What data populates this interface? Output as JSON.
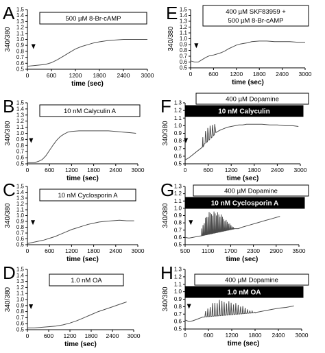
{
  "colors": {
    "trace": "#4a4a4a",
    "axis": "#000000",
    "label_bg": "#ffffff",
    "label_bg_dark": "#000000",
    "label_fg_dark": "#ffffff"
  },
  "chart_data": [
    {
      "id": "A",
      "type": "line",
      "letter": "A",
      "ylabel": "340/380",
      "xlabel": "time (sec)",
      "yticks": [
        "0.5",
        "0.6",
        "0.7",
        "0.8",
        "0.9",
        "1.0",
        "1.1",
        "1.2",
        "1.3",
        "1.4",
        "1.5"
      ],
      "xticks": [
        "0",
        "600",
        "1200",
        "1800",
        "2400",
        "3000"
      ],
      "xlim": [
        0,
        3000
      ],
      "ylim": [
        0.5,
        1.5
      ],
      "grid": false,
      "labels": [
        {
          "text": "500 µM 8-Br-cAMP",
          "style": "outline"
        }
      ],
      "arrow_x": 150,
      "x": [
        0,
        150,
        300,
        450,
        600,
        750,
        900,
        1050,
        1200,
        1350,
        1500,
        1650,
        1800,
        2000,
        2200,
        2400,
        2600,
        2800,
        3000
      ],
      "y": [
        0.55,
        0.56,
        0.57,
        0.58,
        0.61,
        0.66,
        0.72,
        0.78,
        0.84,
        0.88,
        0.91,
        0.94,
        0.96,
        0.98,
        0.99,
        1.0,
        1.0,
        1.0,
        1.0
      ]
    },
    {
      "id": "B",
      "type": "line",
      "letter": "B",
      "ylabel": "340/380",
      "xlabel": "time (sec)",
      "yticks": [
        "0.5",
        "0.6",
        "0.7",
        "0.8",
        "0.9",
        "1.0",
        "1.1",
        "1.2",
        "1.3",
        "1.4",
        "1.5"
      ],
      "xticks": [
        "0",
        "600",
        "1200",
        "1800",
        "2400",
        "3000"
      ],
      "xlim": [
        0,
        3000
      ],
      "ylim": [
        0.5,
        1.5
      ],
      "grid": false,
      "labels": [
        {
          "text": "10 nM Calyculin A",
          "style": "outline"
        }
      ],
      "arrow_x": 100,
      "x": [
        0,
        100,
        200,
        300,
        400,
        500,
        600,
        700,
        800,
        900,
        1000,
        1100,
        1200,
        1400,
        1600,
        1800,
        2000,
        2200,
        2400,
        2600,
        2800,
        2950
      ],
      "y": [
        0.52,
        0.52,
        0.52,
        0.54,
        0.57,
        0.63,
        0.72,
        0.81,
        0.89,
        0.95,
        0.99,
        1.02,
        1.03,
        1.04,
        1.04,
        1.04,
        1.04,
        1.04,
        1.03,
        1.02,
        1.01,
        1.0
      ]
    },
    {
      "id": "C",
      "type": "line",
      "letter": "C",
      "ylabel": "340/380",
      "xlabel": "time (sec)",
      "yticks": [
        "0.5",
        "0.6",
        "0.7",
        "0.8",
        "0.9",
        "1.0",
        "1.1",
        "1.2",
        "1.3",
        "1.4",
        "1.5"
      ],
      "xticks": [
        "0",
        "600",
        "1200",
        "1800",
        "2400",
        "3000"
      ],
      "xlim": [
        0,
        3000
      ],
      "ylim": [
        0.5,
        1.5
      ],
      "grid": false,
      "labels": [
        {
          "text": "10 nM Cyclosporin A",
          "style": "outline"
        }
      ],
      "arrow_x": 150,
      "x": [
        0,
        150,
        300,
        450,
        600,
        750,
        900,
        1050,
        1200,
        1350,
        1500,
        1650,
        1800,
        1950,
        2100,
        2300,
        2500,
        2700,
        2900
      ],
      "y": [
        0.52,
        0.54,
        0.56,
        0.58,
        0.61,
        0.64,
        0.68,
        0.72,
        0.76,
        0.79,
        0.82,
        0.85,
        0.87,
        0.89,
        0.9,
        0.91,
        0.92,
        0.91,
        0.91
      ]
    },
    {
      "id": "D",
      "type": "line",
      "letter": "D",
      "ylabel": "340/380",
      "xlabel": "time (sec)",
      "yticks": [
        "0.5",
        "0.6",
        "0.7",
        "0.8",
        "0.9",
        "1.0",
        "1.1",
        "1.2",
        "1.3",
        "1.4",
        "1.5"
      ],
      "xticks": [
        "0",
        "600",
        "1200",
        "1800",
        "2400",
        "3000"
      ],
      "xlim": [
        0,
        3000
      ],
      "ylim": [
        0.5,
        1.5
      ],
      "grid": false,
      "labels": [
        {
          "text": "1.0 nM OA",
          "style": "outline"
        }
      ],
      "arrow_x": 100,
      "x": [
        0,
        200,
        400,
        600,
        800,
        1000,
        1200,
        1400,
        1600,
        1800,
        2000,
        2200,
        2400,
        2600,
        2800
      ],
      "y": [
        0.53,
        0.53,
        0.54,
        0.55,
        0.56,
        0.58,
        0.61,
        0.65,
        0.7,
        0.75,
        0.8,
        0.84,
        0.88,
        0.92,
        0.96
      ]
    },
    {
      "id": "E",
      "type": "line",
      "letter": "E",
      "ylabel": "340/380",
      "xlabel": "time (sec)",
      "yticks": [
        "0.5",
        "0.6",
        "0.7",
        "0.8",
        "0.9",
        "1.0",
        "1.1",
        "1.2",
        "1.3",
        "1.4",
        "1.5"
      ],
      "xticks": [
        "0",
        "600",
        "1200",
        "1800",
        "2400",
        "3000"
      ],
      "xlim": [
        0,
        3000
      ],
      "ylim": [
        0.5,
        1.5
      ],
      "grid": false,
      "labels": [
        {
          "text": "400 µM SKF83959 +",
          "text2": "500 µM 8-Br-cAMP",
          "style": "outline"
        }
      ],
      "arrow_x": 150,
      "x": [
        0,
        100,
        200,
        300,
        400,
        500,
        600,
        700,
        800,
        900,
        1000,
        1100,
        1200,
        1300,
        1400,
        1500,
        1600,
        1800,
        2000,
        2200,
        2400,
        2600,
        2800,
        3000
      ],
      "y": [
        0.62,
        0.6,
        0.6,
        0.64,
        0.68,
        0.71,
        0.72,
        0.74,
        0.76,
        0.79,
        0.83,
        0.86,
        0.89,
        0.91,
        0.92,
        0.93,
        0.95,
        0.96,
        0.96,
        0.95,
        0.95,
        0.95,
        0.94,
        0.94
      ]
    },
    {
      "id": "F",
      "type": "line",
      "letter": "F",
      "ylabel": "340/380",
      "xlabel": "time (sec)",
      "yticks": [
        "0.5",
        "0.6",
        "0.7",
        "0.8",
        "0.9",
        "1.0",
        "1.1",
        "1.2",
        "1.3"
      ],
      "xticks": [
        "0",
        "600",
        "1200",
        "1800",
        "2400",
        "3000"
      ],
      "xlim": [
        0,
        3000
      ],
      "ylim": [
        0.5,
        1.3
      ],
      "grid": false,
      "labels": [
        {
          "text": "400 µM Dopamine",
          "style": "outline"
        },
        {
          "text": "10 nM Calyculin",
          "style": "filled"
        }
      ],
      "arrow_x": 20,
      "x": [
        0,
        100,
        200,
        300,
        400,
        450,
        460,
        470,
        500,
        520,
        530,
        560,
        580,
        590,
        620,
        640,
        650,
        680,
        700,
        710,
        740,
        760,
        770,
        800,
        900,
        1000,
        1100,
        1200,
        1300,
        1400,
        1500,
        1600,
        1700,
        1800,
        2000,
        2200,
        2400,
        2600,
        2800,
        2950
      ],
      "y": [
        0.55,
        0.58,
        0.62,
        0.66,
        0.7,
        0.72,
        0.85,
        0.72,
        0.76,
        0.77,
        0.93,
        0.78,
        0.79,
        0.97,
        0.81,
        0.82,
        1.0,
        0.84,
        0.85,
        1.01,
        0.87,
        0.88,
        1.02,
        0.91,
        0.94,
        0.96,
        0.98,
        0.99,
        1.0,
        1.01,
        1.01,
        1.02,
        1.02,
        1.02,
        1.02,
        1.01,
        1.01,
        1.0,
        1.0,
        0.99
      ]
    },
    {
      "id": "G",
      "type": "line",
      "letter": "G",
      "ylabel": "340/380",
      "xlabel": "time (sec)",
      "yticks": [
        "0.5",
        "0.6",
        "0.7",
        "0.8",
        "0.9",
        "1.0",
        "1.1",
        "1.2",
        "1.3"
      ],
      "xticks": [
        "500",
        "1100",
        "1700",
        "2300",
        "2900",
        "3500"
      ],
      "xlim": [
        500,
        3500
      ],
      "ylim": [
        0.5,
        1.3
      ],
      "grid": false,
      "labels": [
        {
          "text": "400 µM Dopamine",
          "style": "outline"
        },
        {
          "text": "10 nM Cyclosporin A",
          "style": "filled"
        }
      ],
      "arrow_x": 650,
      "spikes": {
        "start": 900,
        "end": 1800,
        "step": 32,
        "base_start": 0.62,
        "base_end": 0.72,
        "top_peak": 0.98
      },
      "x": [
        500,
        600,
        700,
        800,
        900,
        1800,
        1900,
        2000,
        2200,
        2400,
        2600,
        2800,
        3000
      ],
      "y": [
        0.6,
        0.59,
        0.6,
        0.61,
        0.62,
        0.72,
        0.72,
        0.74,
        0.77,
        0.8,
        0.83,
        0.86,
        0.89
      ]
    },
    {
      "id": "H",
      "type": "line",
      "letter": "H",
      "ylabel": "340/380",
      "xlabel": "time (sec)",
      "yticks": [
        "0.5",
        "0.6",
        "0.7",
        "0.8",
        "0.9",
        "1.0",
        "1.1",
        "1.2",
        "1.3"
      ],
      "xticks": [
        "0",
        "600",
        "1200",
        "1800",
        "2400",
        "3000"
      ],
      "xlim": [
        0,
        3000
      ],
      "ylim": [
        0.5,
        1.3
      ],
      "grid": false,
      "labels": [
        {
          "text": "400 µM Dopamine",
          "style": "outline"
        },
        {
          "text": "1.0 nM OA",
          "style": "filled"
        }
      ],
      "arrow_x": 100,
      "spikes": {
        "start": 450,
        "end": 1800,
        "step": 60,
        "base_start": 0.66,
        "base_end": 0.72,
        "top_peak": 0.9
      },
      "x": [
        0,
        100,
        200,
        300,
        400,
        450,
        1800,
        1900,
        2000,
        2200,
        2400,
        2600,
        2800
      ],
      "y": [
        0.62,
        0.6,
        0.61,
        0.63,
        0.65,
        0.66,
        0.72,
        0.73,
        0.74,
        0.76,
        0.78,
        0.79,
        0.81
      ]
    }
  ]
}
